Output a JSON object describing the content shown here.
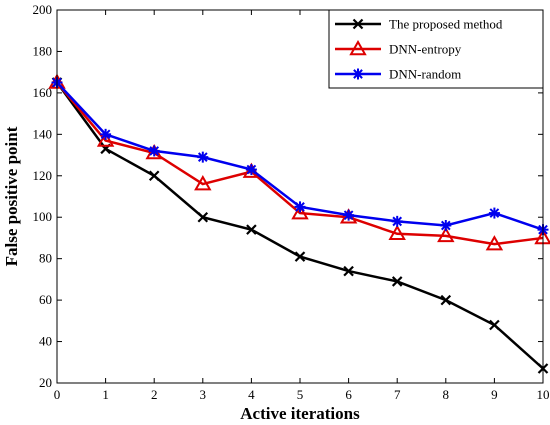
{
  "chart_data": {
    "type": "line",
    "title": "",
    "xlabel": "Active iterations",
    "ylabel": "False positive point",
    "x": [
      0,
      1,
      2,
      3,
      4,
      5,
      6,
      7,
      8,
      9,
      10
    ],
    "xlim": [
      0,
      10
    ],
    "ylim": [
      20,
      200
    ],
    "xticks": [
      0,
      1,
      2,
      3,
      4,
      5,
      6,
      7,
      8,
      9,
      10
    ],
    "yticks": [
      20,
      40,
      60,
      80,
      100,
      120,
      140,
      160,
      180,
      200
    ],
    "grid": false,
    "legend_position": "top-right",
    "series": [
      {
        "name": "The proposed method",
        "color": "#000000",
        "marker": "x",
        "values": [
          165,
          133,
          120,
          100,
          94,
          81,
          74,
          69,
          60,
          48,
          27
        ]
      },
      {
        "name": "DNN-entropy",
        "color": "#dd0000",
        "marker": "triangle",
        "values": [
          165,
          137,
          131,
          116,
          122,
          102,
          100,
          92,
          91,
          87,
          90
        ]
      },
      {
        "name": "DNN-random",
        "color": "#0000ee",
        "marker": "asterisk",
        "values": [
          165,
          140,
          132,
          129,
          123,
          105,
          101,
          98,
          96,
          102,
          94
        ]
      }
    ]
  }
}
